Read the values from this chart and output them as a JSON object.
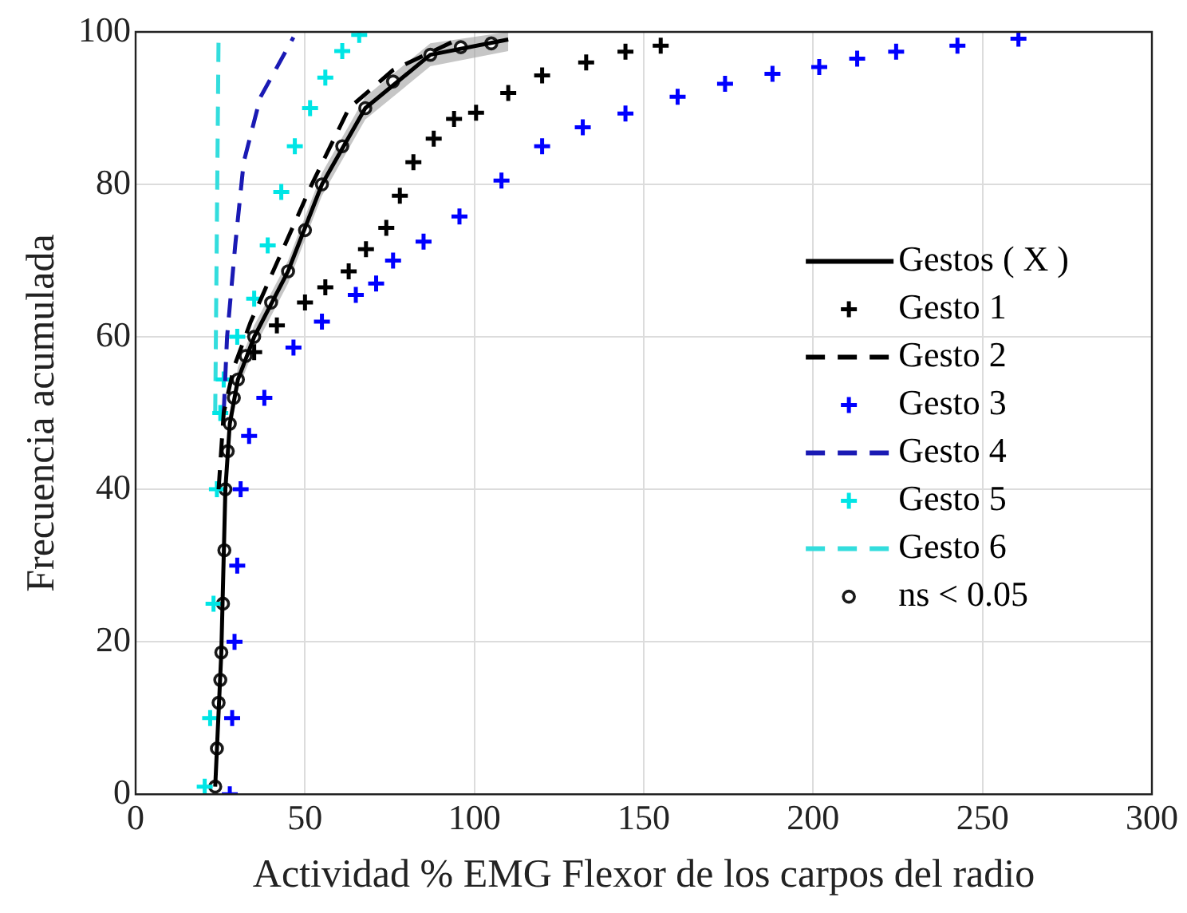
{
  "chart_data": {
    "type": "line",
    "xlabel": "Actividad % EMG Flexor de los carpos del radio",
    "ylabel": "Frecuencia acumulada",
    "xlim": [
      0,
      300
    ],
    "xticks": [
      0,
      50,
      100,
      150,
      200,
      250,
      300
    ],
    "ylim": [
      0,
      100
    ],
    "yticks": [
      0,
      20,
      40,
      60,
      80,
      100
    ],
    "grid": true,
    "legend": "right",
    "series": [
      {
        "name": "Gestos ( X )",
        "type": "line",
        "line_style": "solid",
        "marker": "none",
        "color": "#000000",
        "x": [
          23.5,
          25.3,
          26.5,
          27.8,
          30.2,
          35,
          45,
          55,
          67.8,
          87,
          110
        ],
        "values": [
          1,
          18.6,
          40,
          48.6,
          54.4,
          60,
          68.6,
          80,
          90,
          97,
          99
        ],
        "lower": [
          0,
          17,
          38.5,
          47,
          53,
          58.5,
          67,
          78.5,
          88.5,
          95.5,
          97.5
        ],
        "upper": [
          2.5,
          20,
          41.5,
          50,
          56,
          61.5,
          70,
          81.5,
          91.5,
          98.5,
          100
        ]
      },
      {
        "name": "Gesto 1",
        "type": "scatter",
        "marker": "cross",
        "color": "#000000",
        "x": [
          35,
          41.7,
          50,
          56,
          62.9,
          68,
          74,
          78,
          82,
          88,
          94,
          100.5,
          110,
          120,
          133,
          144.6,
          155
        ],
        "values": [
          58,
          61.5,
          64.5,
          66.5,
          68.6,
          71.5,
          74.3,
          78.5,
          82.9,
          86,
          88.6,
          89.4,
          92,
          94.3,
          96,
          97.4,
          98.2
        ]
      },
      {
        "name": "Gesto 2",
        "type": "line",
        "line_style": "dashed",
        "marker": "none",
        "color": "#000000",
        "x": [
          24.5,
          26,
          29,
          34,
          42,
          52,
          63,
          76,
          95
        ],
        "values": [
          40,
          50,
          56,
          62,
          70,
          80,
          90,
          95,
          99
        ]
      },
      {
        "name": "Gesto 3",
        "type": "scatter",
        "marker": "cross",
        "color": "#0000ff",
        "x": [
          27.8,
          28.5,
          29.2,
          30,
          31,
          33.5,
          38,
          46.6,
          55,
          65,
          71,
          76,
          85,
          95.6,
          108,
          120,
          132,
          144.6,
          160,
          174,
          188,
          201.8,
          213,
          224.5,
          242.6,
          260.6
        ],
        "values": [
          0,
          10,
          20,
          30,
          40,
          47,
          52,
          58.6,
          62,
          65.5,
          67,
          70,
          72.5,
          75.8,
          80.5,
          85,
          87.5,
          89.3,
          91.5,
          93.2,
          94.5,
          95.4,
          96.5,
          97.4,
          98.2,
          99.1
        ]
      },
      {
        "name": "Gesto 4",
        "type": "line",
        "line_style": "dashed",
        "marker": "none",
        "color": "#1a1ab4",
        "x": [
          26,
          27,
          29.4,
          31.9,
          36.8,
          46.6
        ],
        "values": [
          50,
          60,
          72,
          82.9,
          91.4,
          99.3
        ]
      },
      {
        "name": "Gesto 5",
        "type": "scatter",
        "marker": "cross",
        "color": "#00e5e5",
        "x": [
          20.4,
          22,
          23,
          24,
          25,
          26,
          30,
          35,
          39,
          43,
          47,
          51.5,
          56,
          61,
          66
        ],
        "values": [
          1,
          10,
          25,
          40,
          50,
          54.4,
          60,
          65,
          72,
          79,
          85,
          90,
          94,
          97.5,
          99.6
        ]
      },
      {
        "name": "Gesto 6",
        "type": "line",
        "line_style": "dashed",
        "marker": "none",
        "color": "#33dddd",
        "x": [
          23.5,
          24,
          24.5
        ],
        "values": [
          50,
          75,
          100
        ]
      },
      {
        "name": "ns < 0.05",
        "type": "scatter",
        "marker": "circle",
        "color": "#1a1a1a",
        "x": [
          23.5,
          24,
          24.5,
          25,
          25.3,
          25.8,
          26.2,
          26.5,
          27.2,
          27.8,
          29,
          30.2,
          32.5,
          35,
          40,
          45,
          50,
          55,
          61,
          67.8,
          76,
          87,
          96,
          105
        ],
        "values": [
          1,
          6,
          12,
          15,
          18.6,
          25,
          32,
          40,
          45,
          48.6,
          52,
          54.4,
          57.5,
          60,
          64.5,
          68.6,
          74,
          80,
          85,
          90,
          93.5,
          97,
          98,
          98.5
        ]
      }
    ]
  }
}
